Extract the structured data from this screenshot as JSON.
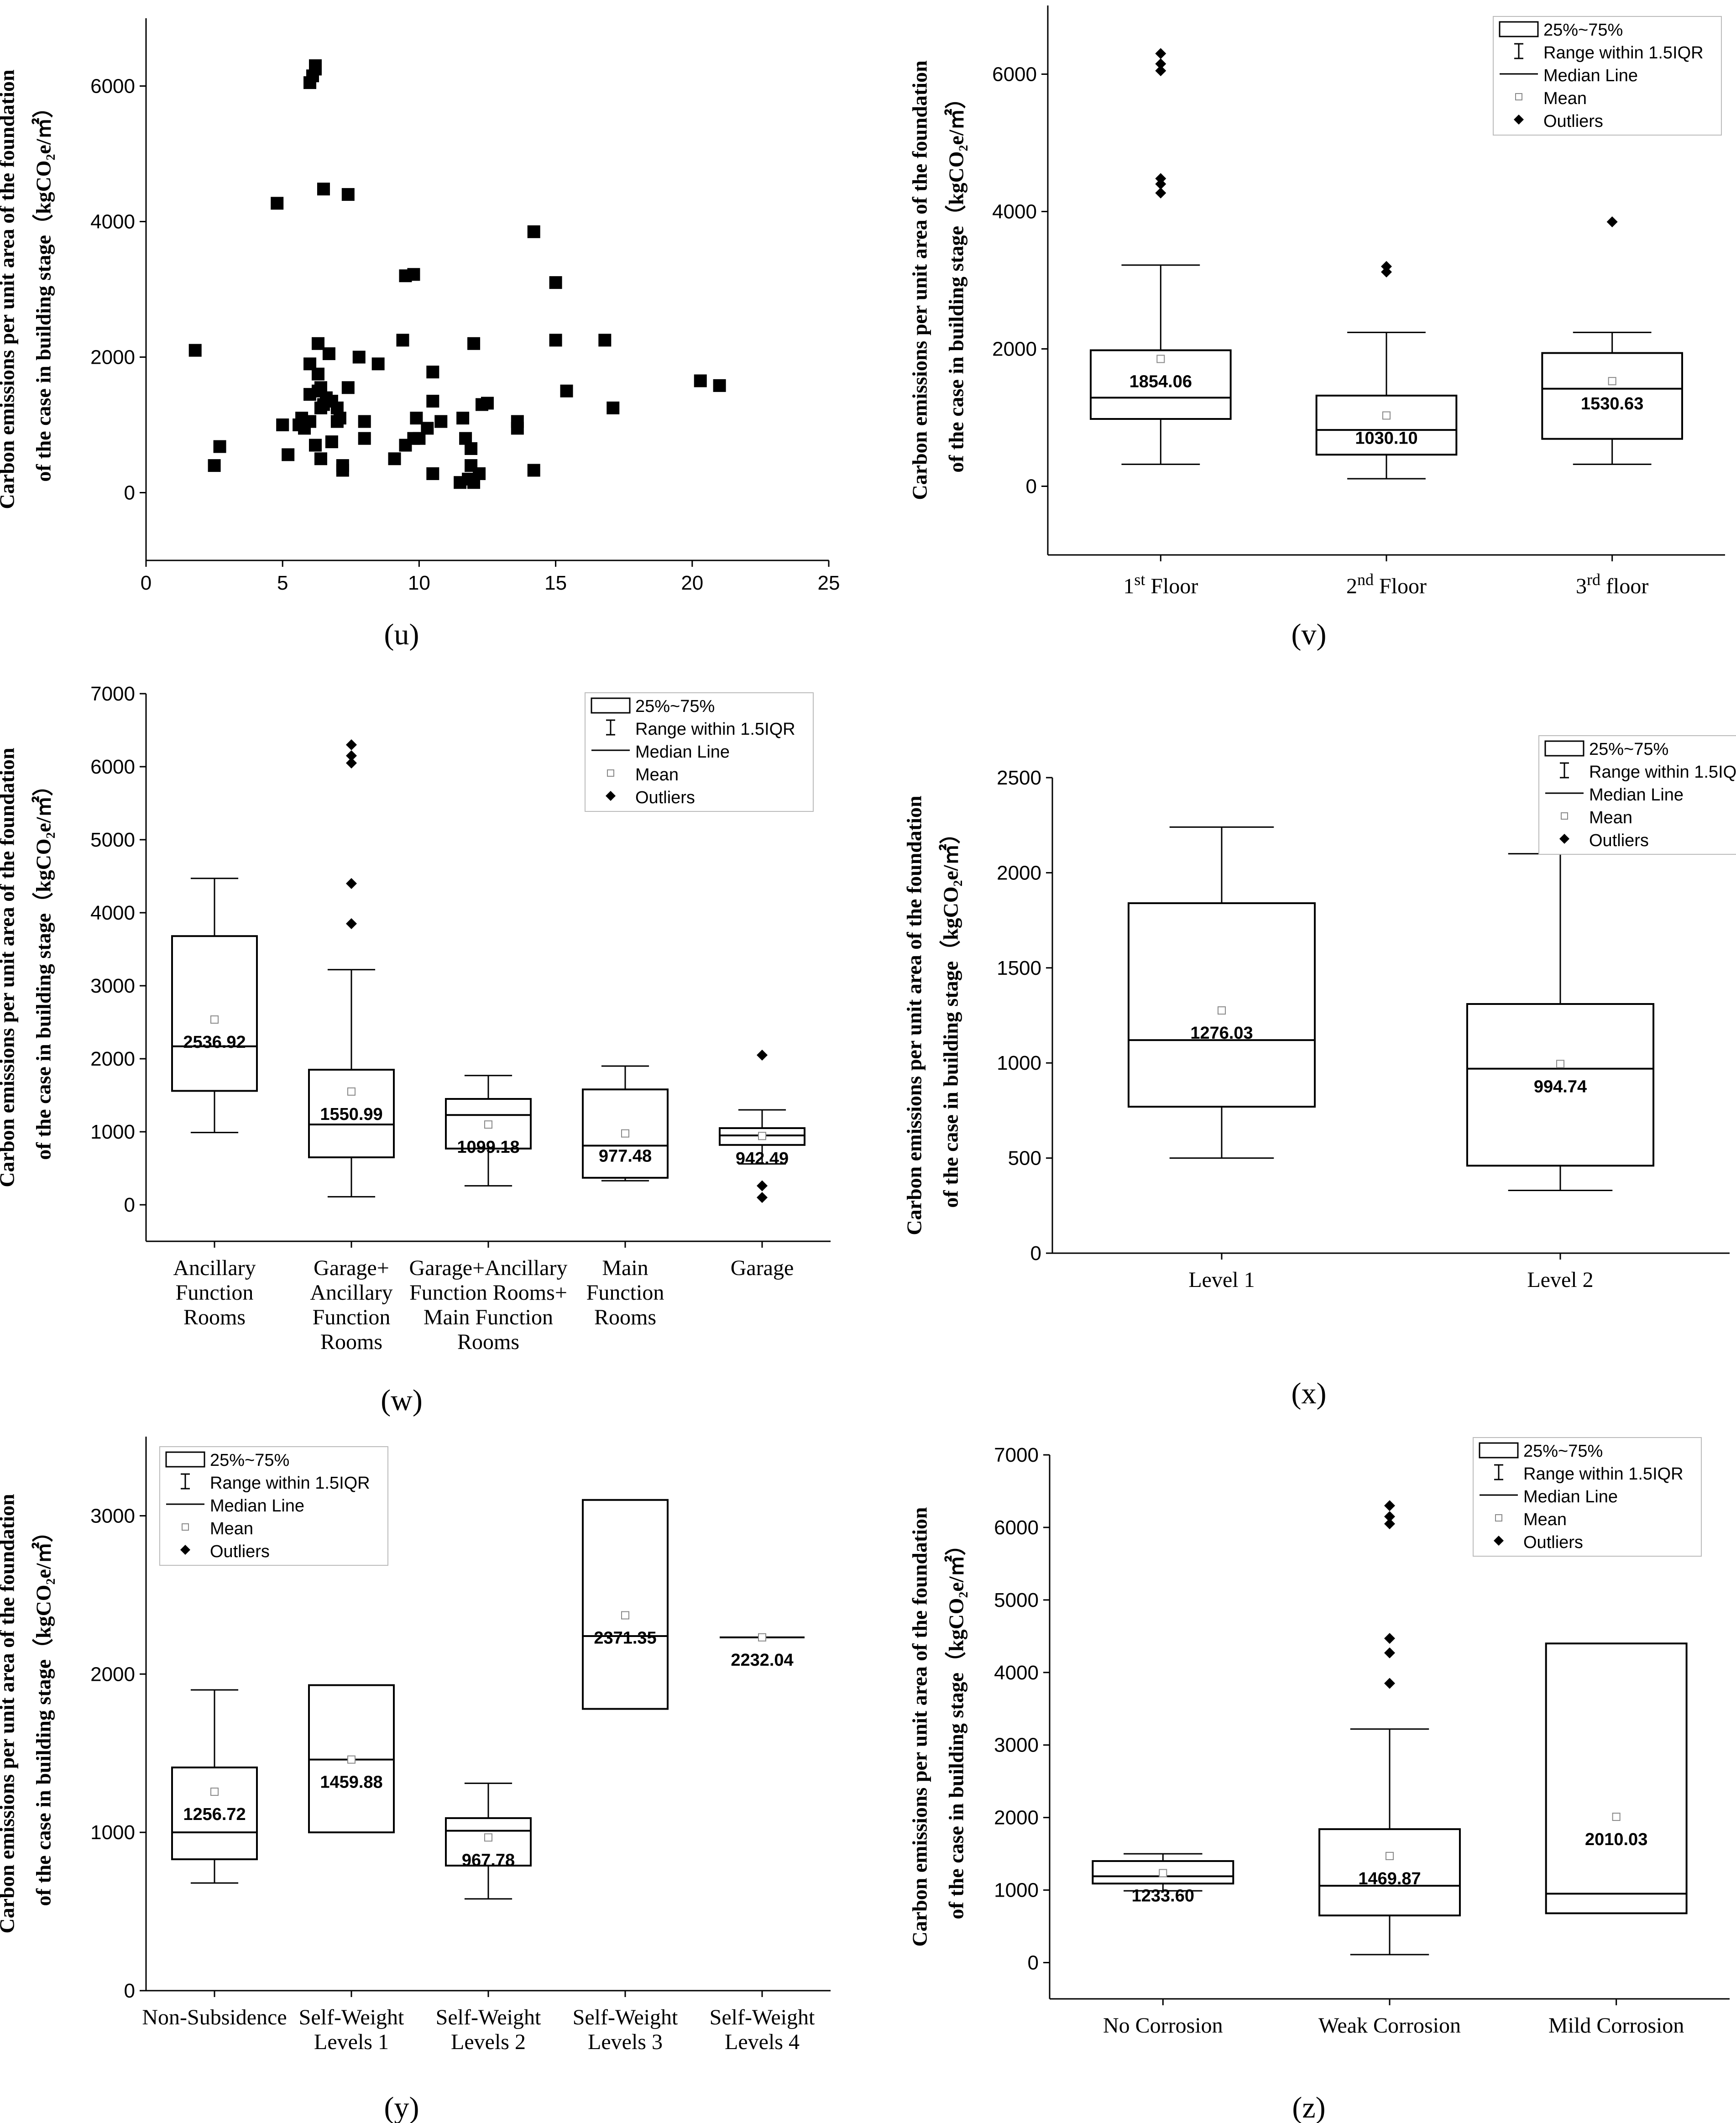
{
  "chart_data": [
    {
      "id": "u",
      "type": "scatter",
      "panel_label": "(u)",
      "ylabel_lines": [
        "Carbon emissions per unit area of the foundation",
        "of the case in building stage（kgCO₂e/㎡）"
      ],
      "xlim": [
        0,
        25
      ],
      "ylim": [
        -1000,
        7000
      ],
      "xticks": [
        0,
        5,
        10,
        15,
        20,
        25
      ],
      "yticks": [
        0,
        2000,
        4000,
        6000
      ],
      "points": [
        [
          1.8,
          2100
        ],
        [
          2.5,
          400
        ],
        [
          2.7,
          680
        ],
        [
          4.8,
          4270
        ],
        [
          5,
          1000
        ],
        [
          5.2,
          560
        ],
        [
          5.6,
          1000
        ],
        [
          5.7,
          1100
        ],
        [
          5.8,
          950
        ],
        [
          6,
          1900
        ],
        [
          6,
          1450
        ],
        [
          6,
          1050
        ],
        [
          6,
          6050
        ],
        [
          6.1,
          6150
        ],
        [
          6.2,
          6300
        ],
        [
          6.2,
          6250
        ],
        [
          6.2,
          700
        ],
        [
          6.3,
          2200
        ],
        [
          6.3,
          1750
        ],
        [
          6.3,
          1500
        ],
        [
          6.4,
          1550
        ],
        [
          6.4,
          1250
        ],
        [
          6.4,
          500
        ],
        [
          6.5,
          4480
        ],
        [
          6.5,
          1300
        ],
        [
          6.6,
          1400
        ],
        [
          6.7,
          2050
        ],
        [
          6.8,
          1350
        ],
        [
          6.8,
          750
        ],
        [
          7,
          1250
        ],
        [
          7,
          1050
        ],
        [
          7.1,
          1100
        ],
        [
          7.2,
          400
        ],
        [
          7.2,
          330
        ],
        [
          7.4,
          4400
        ],
        [
          7.4,
          1550
        ],
        [
          7.8,
          2000
        ],
        [
          8,
          1050
        ],
        [
          8,
          800
        ],
        [
          8.5,
          1900
        ],
        [
          9.1,
          500
        ],
        [
          9.4,
          2250
        ],
        [
          9.5,
          3200
        ],
        [
          9.5,
          700
        ],
        [
          9.8,
          3220
        ],
        [
          9.8,
          800
        ],
        [
          9.9,
          1100
        ],
        [
          10,
          800
        ],
        [
          10.3,
          950
        ],
        [
          10.5,
          1780
        ],
        [
          10.5,
          1350
        ],
        [
          10.5,
          280
        ],
        [
          10.8,
          1050
        ],
        [
          11.5,
          150
        ],
        [
          11.6,
          1100
        ],
        [
          11.7,
          800
        ],
        [
          11.8,
          200
        ],
        [
          11.9,
          400
        ],
        [
          11.9,
          650
        ],
        [
          12,
          150
        ],
        [
          12,
          2200
        ],
        [
          12.2,
          280
        ],
        [
          12.3,
          1300
        ],
        [
          12.5,
          1320
        ],
        [
          13.6,
          1050
        ],
        [
          13.6,
          950
        ],
        [
          14.2,
          3850
        ],
        [
          14.2,
          330
        ],
        [
          15,
          3100
        ],
        [
          15,
          2250
        ],
        [
          15.4,
          1500
        ],
        [
          16.8,
          2250
        ],
        [
          17.1,
          1250
        ],
        [
          20.3,
          1650
        ],
        [
          21,
          1580
        ]
      ]
    },
    {
      "id": "v",
      "type": "box",
      "panel_label": "(v)",
      "ylabel_lines": [
        "Carbon emissions per unit area of the foundation",
        "of the case in building stage（kgCO₂e/㎡）"
      ],
      "ylim": [
        -1000,
        7000
      ],
      "yticks": [
        0,
        2000,
        4000,
        6000
      ],
      "legend": [
        "25%~75%",
        "Range within 1.5IQR",
        "Median Line",
        "Mean",
        "Outliers"
      ],
      "categories": [
        {
          "label": "1st Floor",
          "base": "1",
          "sup": "st",
          "tail": " Floor"
        },
        {
          "label": "2nd Floor",
          "base": "2",
          "sup": "nd",
          "tail": " Floor"
        },
        {
          "label": "3rd floor",
          "base": "3",
          "sup": "rd",
          "tail": " floor"
        }
      ],
      "boxes": [
        {
          "q1": 980,
          "q3": 1980,
          "median": 1290,
          "mean": 1854.06,
          "whisker_low": 320,
          "whisker_high": 3220,
          "outliers": [
            4270,
            4400,
            4480,
            6050,
            6150,
            6300
          ],
          "mean_label": "1854.06"
        },
        {
          "q1": 460,
          "q3": 1320,
          "median": 820,
          "mean": 1030.1,
          "whisker_low": 110,
          "whisker_high": 2240,
          "outliers": [
            3120,
            3200
          ],
          "mean_label": "1030.10"
        },
        {
          "q1": 690,
          "q3": 1940,
          "median": 1420,
          "mean": 1530.63,
          "whisker_low": 320,
          "whisker_high": 2240,
          "outliers": [
            3850
          ],
          "mean_label": "1530.63"
        }
      ]
    },
    {
      "id": "w",
      "type": "box",
      "panel_label": "(w)",
      "ylabel_lines": [
        "Carbon emissions per unit area of the foundation",
        "of the case in building stage（kgCO₂e/㎡）"
      ],
      "ylim": [
        -500,
        7000
      ],
      "yticks": [
        0,
        1000,
        2000,
        3000,
        4000,
        5000,
        6000,
        7000
      ],
      "legend": [
        "25%~75%",
        "Range within 1.5IQR",
        "Median Line",
        "Mean",
        "Outliers"
      ],
      "categories": [
        {
          "label": "Ancillary Function Rooms",
          "lines": [
            "Ancillary",
            "Function",
            "Rooms"
          ]
        },
        {
          "label": "Garage+ Ancillary Function Rooms",
          "lines": [
            "Garage+",
            "Ancillary",
            "Function",
            "Rooms"
          ]
        },
        {
          "label": "Garage+Ancillary Function Rooms+ Main Function Rooms",
          "lines": [
            "Garage+Ancillary",
            "Function Rooms+",
            "Main Function",
            "Rooms"
          ]
        },
        {
          "label": "Main Function Rooms",
          "lines": [
            "Main",
            "Function",
            "Rooms"
          ]
        },
        {
          "label": "Garage",
          "lines": [
            "Garage"
          ]
        }
      ],
      "boxes": [
        {
          "q1": 1560,
          "q3": 3680,
          "median": 2170,
          "mean": 2536.92,
          "whisker_low": 990,
          "whisker_high": 4470,
          "outliers": [],
          "mean_label": "2536.92"
        },
        {
          "q1": 650,
          "q3": 1850,
          "median": 1100,
          "mean": 1550.99,
          "whisker_low": 110,
          "whisker_high": 3220,
          "outliers": [
            3850,
            4400,
            6050,
            6150,
            6300
          ],
          "mean_label": "1550.99"
        },
        {
          "q1": 770,
          "q3": 1450,
          "median": 1230,
          "mean": 1099.18,
          "whisker_low": 260,
          "whisker_high": 1770,
          "outliers": [],
          "mean_label": "1099.18"
        },
        {
          "q1": 370,
          "q3": 1580,
          "median": 810,
          "mean": 977.48,
          "whisker_low": 330,
          "whisker_high": 1900,
          "outliers": [],
          "mean_label": "977.48"
        },
        {
          "q1": 820,
          "q3": 1050,
          "median": 950,
          "mean": 942.49,
          "whisker_low": 560,
          "whisker_high": 1300,
          "outliers": [
            2050,
            260,
            100
          ],
          "mean_label": "942.49"
        }
      ]
    },
    {
      "id": "x",
      "type": "box",
      "panel_label": "(x)",
      "ylabel_lines": [
        "Carbon emissions per unit area of the foundation",
        "of the case in building stage（kgCO₂e/㎡）"
      ],
      "ylim": [
        0,
        2500
      ],
      "yticks": [
        0,
        500,
        1000,
        1500,
        2000,
        2500
      ],
      "legend": [
        "25%~75%",
        "Range within 1.5IQR",
        "Median Line",
        "Mean",
        "Outliers"
      ],
      "categories": [
        {
          "label": "Level 1",
          "lines": [
            "Level 1"
          ]
        },
        {
          "label": "Level 2",
          "lines": [
            "Level 2"
          ]
        }
      ],
      "boxes": [
        {
          "q1": 770,
          "q3": 1840,
          "median": 1120,
          "mean": 1276.03,
          "whisker_low": 500,
          "whisker_high": 2240,
          "outliers": [],
          "mean_label": "1276.03"
        },
        {
          "q1": 460,
          "q3": 1310,
          "median": 970,
          "mean": 994.74,
          "whisker_low": 330,
          "whisker_high": 2100,
          "outliers": [],
          "mean_label": "994.74"
        }
      ]
    },
    {
      "id": "y",
      "type": "box",
      "panel_label": "(y)",
      "ylabel_lines": [
        "Carbon emissions per unit area of the foundation",
        "of the case in building stage（kgCO₂e/㎡）"
      ],
      "ylim": [
        0,
        3500
      ],
      "yticks": [
        0,
        1000,
        2000,
        3000
      ],
      "legend": [
        "25%~75%",
        "Range within 1.5IQR",
        "Median Line",
        "Mean",
        "Outliers"
      ],
      "categories": [
        {
          "label": "Non-Subsidence",
          "lines": [
            "Non-Subsidence"
          ]
        },
        {
          "label": "Self-Weight Levels 1",
          "lines": [
            "Self-Weight",
            "Levels 1"
          ]
        },
        {
          "label": "Self-Weight Levels 2",
          "lines": [
            "Self-Weight",
            "Levels 2"
          ]
        },
        {
          "label": "Self-Weight Levels 3",
          "lines": [
            "Self-Weight",
            "Levels 3"
          ]
        },
        {
          "label": "Self-Weight Levels 4",
          "lines": [
            "Self-Weight",
            "Levels 4"
          ]
        }
      ],
      "boxes": [
        {
          "q1": 830,
          "q3": 1410,
          "median": 1000,
          "mean": 1256.72,
          "whisker_low": 680,
          "whisker_high": 1900,
          "outliers": [],
          "mean_label": "1256.72"
        },
        {
          "q1": 1000,
          "q3": 1930,
          "median": 1460,
          "mean": 1459.88,
          "whisker_low": 1000,
          "whisker_high": 1930,
          "outliers": [],
          "mean_label": "1459.88"
        },
        {
          "q1": 790,
          "q3": 1090,
          "median": 1010,
          "mean": 967.78,
          "whisker_low": 580,
          "whisker_high": 1310,
          "outliers": [],
          "mean_label": "967.78"
        },
        {
          "q1": 1780,
          "q3": 3100,
          "median": 2240,
          "mean": 2371.35,
          "whisker_low": 1780,
          "whisker_high": 3100,
          "outliers": [],
          "mean_label": "2371.35"
        },
        {
          "q1": 2232,
          "q3": 2232,
          "median": 2232,
          "mean": 2232.04,
          "whisker_low": 2232,
          "whisker_high": 2232,
          "outliers": [],
          "mean_label": "2232.04"
        }
      ]
    },
    {
      "id": "z",
      "type": "box",
      "panel_label": "(z)",
      "ylabel_lines": [
        "Carbon emissions per unit area of the foundation",
        "of the case in building stage（kgCO₂e/㎡）"
      ],
      "ylim": [
        -500,
        7000
      ],
      "yticks": [
        0,
        1000,
        2000,
        3000,
        4000,
        5000,
        6000,
        7000
      ],
      "legend": [
        "25%~75%",
        "Range within 1.5IQR",
        "Median Line",
        "Mean",
        "Outliers"
      ],
      "categories": [
        {
          "label": "No Corrosion",
          "lines": [
            "No Corrosion"
          ]
        },
        {
          "label": "Weak Corrosion",
          "lines": [
            "Weak Corrosion"
          ]
        },
        {
          "label": "Mild Corrosion",
          "lines": [
            "Mild Corrosion"
          ]
        }
      ],
      "boxes": [
        {
          "q1": 1090,
          "q3": 1400,
          "median": 1190,
          "mean": 1233.6,
          "whisker_low": 990,
          "whisker_high": 1500,
          "outliers": [],
          "mean_label": "1233.60"
        },
        {
          "q1": 650,
          "q3": 1840,
          "median": 1060,
          "mean": 1469.87,
          "whisker_low": 110,
          "whisker_high": 3220,
          "outliers": [
            3850,
            4270,
            4470,
            6050,
            6150,
            6300
          ],
          "mean_label": "1469.87"
        },
        {
          "q1": 680,
          "q3": 4400,
          "median": 950,
          "mean": 2010.03,
          "whisker_low": 680,
          "whisker_high": 4400,
          "outliers": [],
          "mean_label": "2010.03"
        }
      ]
    }
  ]
}
